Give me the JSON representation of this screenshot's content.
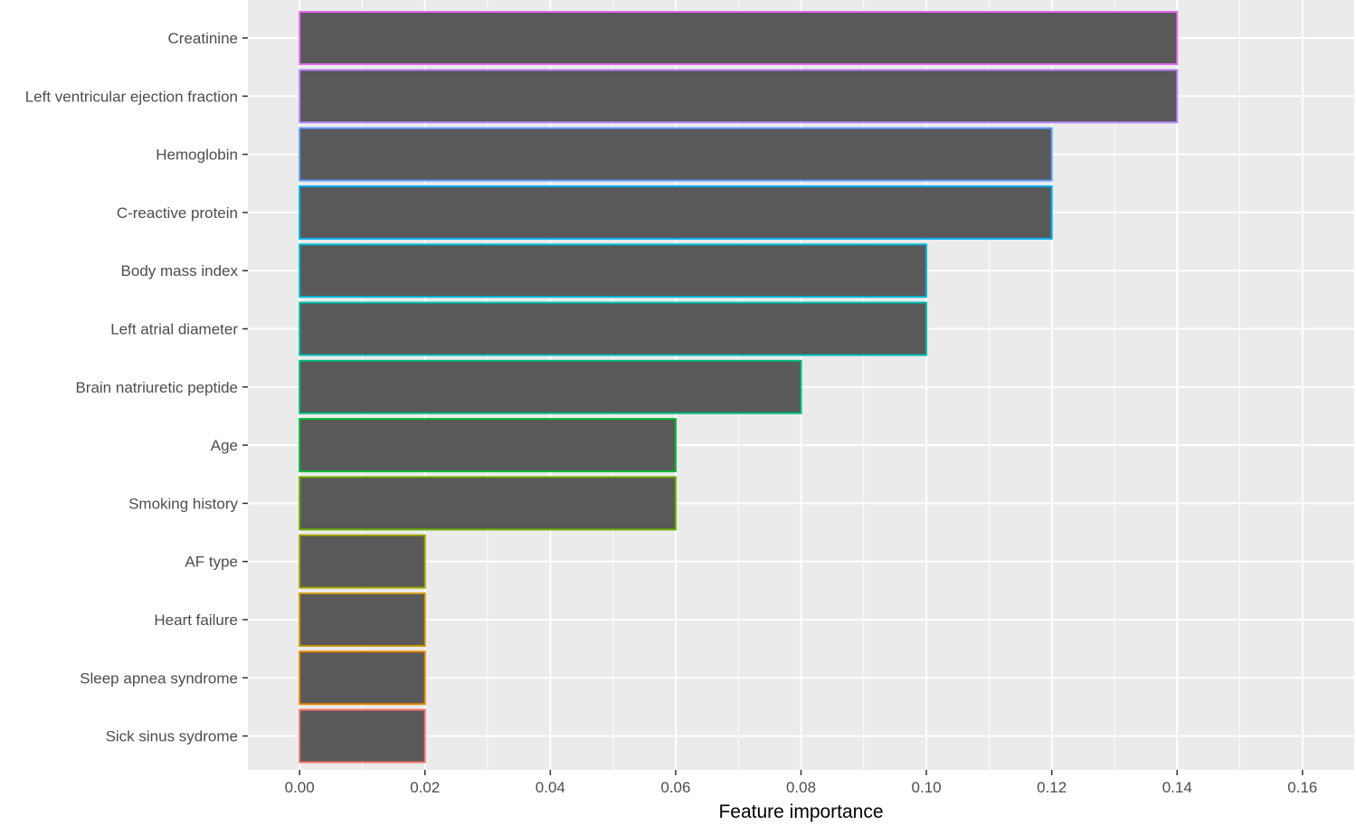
{
  "chart_data": {
    "type": "bar",
    "orientation": "horizontal",
    "categories": [
      "Creatinine",
      "Left ventricular ejection fraction",
      "Hemoglobin",
      "C-reactive protein",
      "Body mass index",
      "Left atrial diameter",
      "Brain natriuretic peptide",
      "Age",
      "Smoking history",
      "AF type",
      "Heart failure",
      "Sleep apnea syndrome",
      "Sick sinus sydrome"
    ],
    "values": [
      0.14,
      0.14,
      0.12,
      0.12,
      0.1,
      0.1,
      0.08,
      0.06,
      0.06,
      0.02,
      0.02,
      0.02,
      0.02
    ],
    "bar_fill": "#595959",
    "bar_outline_colors": [
      "#F8766D",
      "#E58700",
      "#C99800",
      "#A3A500",
      "#6BB100",
      "#00BA38",
      "#00BF7D",
      "#00C0AF",
      "#00BCD8",
      "#00B0F6",
      "#619CFF",
      "#B983FF",
      "#E76BF3"
    ],
    "x_ticks": [
      "0.00",
      "0.02",
      "0.04",
      "0.06",
      "0.08",
      "0.10",
      "0.12",
      "0.14",
      "0.16"
    ],
    "xlim": [
      -0.00825,
      0.16825
    ],
    "xlabel": "Feature importance",
    "ylabel": "",
    "title": "",
    "grid": true,
    "panel_background": "#EBEBEB",
    "legend": "none"
  }
}
